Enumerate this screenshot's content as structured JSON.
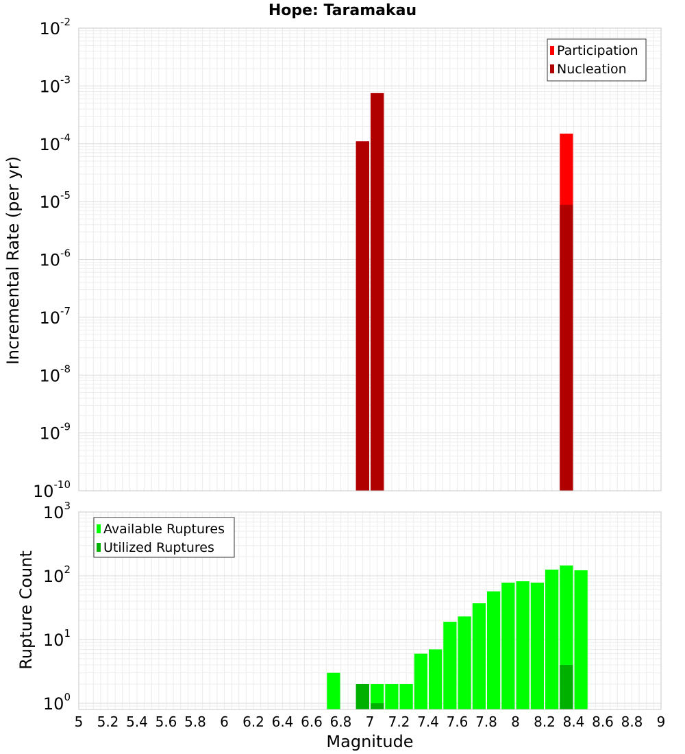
{
  "chart_data": {
    "type": "bar",
    "title": "Hope: Taramakau",
    "xlabel": "Magnitude",
    "xlim": [
      5,
      9
    ],
    "xticks": [
      "5",
      "5.2",
      "5.4",
      "5.6",
      "5.8",
      "6",
      "6.2",
      "6.4",
      "6.6",
      "6.8",
      "7",
      "7.2",
      "7.4",
      "7.6",
      "7.8",
      "8",
      "8.2",
      "8.4",
      "8.6",
      "8.8",
      "9"
    ],
    "bin_width": 0.1,
    "grid": true,
    "panels": [
      {
        "ylabel": "Incremental Rate (per yr)",
        "yscale": "log",
        "ylim": [
          1e-10,
          0.01
        ],
        "yticks": [
          {
            "base": "10",
            "exp": "-10"
          },
          {
            "base": "10",
            "exp": "-9"
          },
          {
            "base": "10",
            "exp": "-8"
          },
          {
            "base": "10",
            "exp": "-7"
          },
          {
            "base": "10",
            "exp": "-6"
          },
          {
            "base": "10",
            "exp": "-5"
          },
          {
            "base": "10",
            "exp": "-4"
          },
          {
            "base": "10",
            "exp": "-3"
          },
          {
            "base": "10",
            "exp": "-2"
          }
        ],
        "legend_position": "top-right",
        "series": [
          {
            "name": "Participation",
            "color": "#ff0000",
            "x": [
              6.95,
              7.05,
              8.35
            ],
            "values": [
              0.00011,
              0.00075,
              0.00015
            ]
          },
          {
            "name": "Nucleation",
            "color": "#b00000",
            "x": [
              6.95,
              7.05,
              8.35
            ],
            "values": [
              0.00011,
              0.00075,
              8.8e-06
            ]
          }
        ]
      },
      {
        "ylabel": "Rupture Count",
        "yscale": "log",
        "ylim": [
          0.8,
          1000
        ],
        "yticks": [
          {
            "base": "10",
            "exp": "0"
          },
          {
            "base": "10",
            "exp": "1"
          },
          {
            "base": "10",
            "exp": "2"
          },
          {
            "base": "10",
            "exp": "3"
          }
        ],
        "legend_position": "top-left",
        "series": [
          {
            "name": "Available Ruptures",
            "color": "#00ff00",
            "x": [
              6.75,
              6.95,
              7.05,
              7.15,
              7.25,
              7.35,
              7.45,
              7.55,
              7.65,
              7.75,
              7.85,
              7.95,
              8.05,
              8.15,
              8.25,
              8.35,
              8.45
            ],
            "values": [
              3,
              2,
              2,
              2,
              2,
              6,
              7,
              19,
              23,
              37,
              57,
              78,
              82,
              78,
              125,
              145,
              122
            ]
          },
          {
            "name": "Utilized Ruptures",
            "color": "#00b000",
            "x": [
              6.95,
              7.05,
              8.35
            ],
            "values": [
              2,
              1,
              4
            ]
          }
        ]
      }
    ]
  }
}
